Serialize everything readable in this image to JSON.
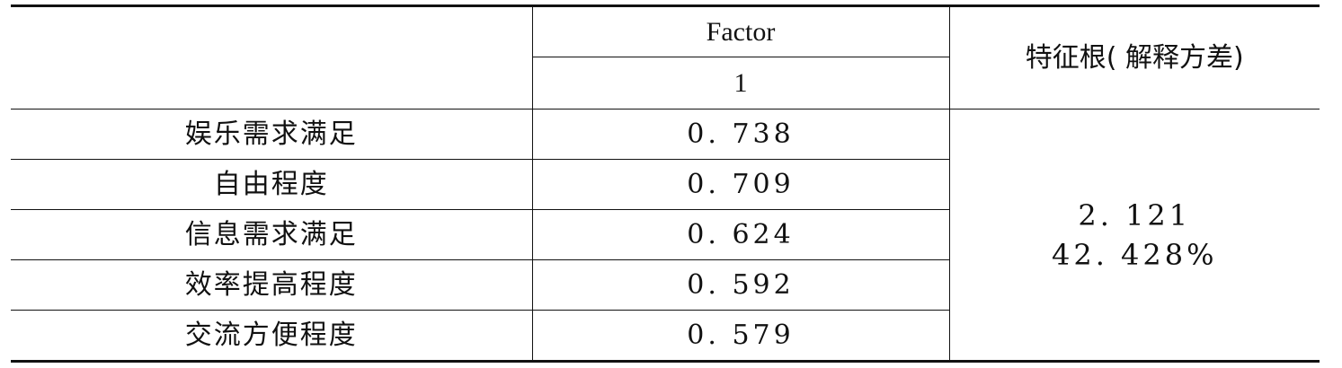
{
  "header": {
    "factor_label": "Factor",
    "factor_number": "1",
    "eigen_label": "特征根( 解释方差)"
  },
  "rows": [
    {
      "label": "娱乐需求满足",
      "loading": "0. 738"
    },
    {
      "label": "自由程度",
      "loading": "0. 709"
    },
    {
      "label": "信息需求满足",
      "loading": "0. 624"
    },
    {
      "label": "效率提高程度",
      "loading": "0. 592"
    },
    {
      "label": "交流方便程度",
      "loading": "0. 579"
    }
  ],
  "summary": {
    "eigenvalue": "2. 121",
    "variance_explained": "42. 428%"
  }
}
